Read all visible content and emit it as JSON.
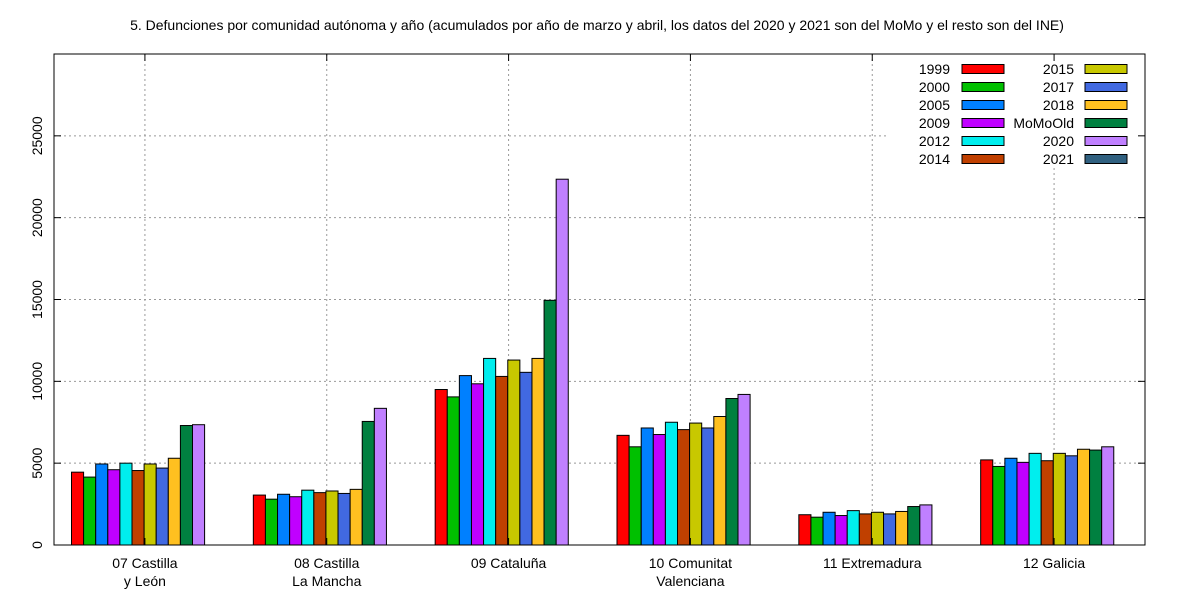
{
  "chart_data": {
    "type": "bar",
    "title": "5. Defunciones por comunidad autónoma y año (acumulados por año de marzo y abril, los datos del 2020 y 2021 son del MoMo y el resto son del INE)",
    "xlabel": "",
    "ylabel": "",
    "ylim": [
      0,
      30000
    ],
    "yticks": [
      0,
      5000,
      10000,
      15000,
      20000,
      25000
    ],
    "grid": true,
    "legend_position": "top-right",
    "categories": [
      [
        "07 Castilla",
        "y León"
      ],
      [
        "08 Castilla",
        "La Mancha"
      ],
      [
        "09 Cataluña"
      ],
      [
        "10 Comunitat",
        "Valenciana"
      ],
      [
        "11 Extremadura"
      ],
      [
        "12 Galicia"
      ]
    ],
    "series": [
      {
        "name": "1999",
        "color": "#ff0000",
        "values": [
          4450,
          3050,
          9500,
          6700,
          1850,
          5200
        ]
      },
      {
        "name": "2000",
        "color": "#00c000",
        "values": [
          4150,
          2800,
          9050,
          6000,
          1700,
          4800
        ]
      },
      {
        "name": "2005",
        "color": "#0080ff",
        "values": [
          4950,
          3100,
          10350,
          7150,
          2000,
          5300
        ]
      },
      {
        "name": "2009",
        "color": "#c000ff",
        "values": [
          4600,
          2950,
          9850,
          6750,
          1800,
          5050
        ]
      },
      {
        "name": "2012",
        "color": "#00eeee",
        "values": [
          5000,
          3350,
          11400,
          7500,
          2100,
          5600
        ]
      },
      {
        "name": "2014",
        "color": "#c04000",
        "values": [
          4550,
          3200,
          10300,
          7050,
          1900,
          5150
        ]
      },
      {
        "name": "2015",
        "color": "#c8c800",
        "values": [
          4950,
          3300,
          11300,
          7450,
          2000,
          5600
        ]
      },
      {
        "name": "2017",
        "color": "#4169e1",
        "values": [
          4700,
          3150,
          10550,
          7150,
          1900,
          5450
        ]
      },
      {
        "name": "2018",
        "color": "#ffc020",
        "values": [
          5300,
          3400,
          11400,
          7850,
          2050,
          5850
        ]
      },
      {
        "name": "MoMoOld",
        "color": "#008040",
        "values": [
          7300,
          7550,
          14950,
          8950,
          2350,
          5800
        ]
      },
      {
        "name": "2020",
        "color": "#c080ff",
        "values": [
          7350,
          8350,
          22350,
          9200,
          2450,
          6000
        ]
      },
      {
        "name": "2021",
        "color": "#306080",
        "values": [
          null,
          null,
          null,
          null,
          null,
          null
        ]
      }
    ]
  }
}
